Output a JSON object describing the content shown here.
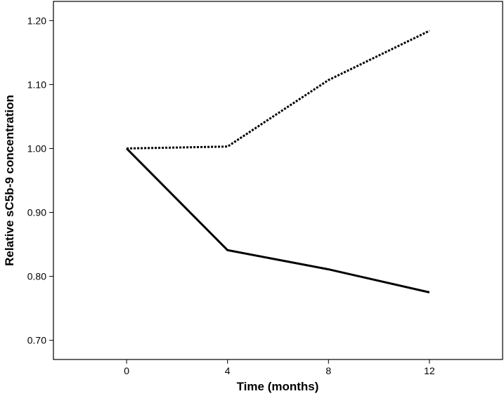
{
  "chart_data": {
    "type": "line",
    "title": "",
    "xlabel": "Time (months)",
    "ylabel": "Relative sC5b-9 concentration",
    "x": [
      0,
      4,
      8,
      12
    ],
    "xlim": [
      -2.9,
      14.9
    ],
    "ylim": [
      0.67,
      1.23
    ],
    "xticks": [
      0,
      4,
      8,
      12
    ],
    "xtick_labels": [
      "0",
      "4",
      "8",
      "12"
    ],
    "yticks": [
      0.7,
      0.8,
      0.9,
      1.0,
      1.1,
      1.2
    ],
    "ytick_labels": [
      "0.70",
      "0.80",
      "0.90",
      "1.00",
      "1.10",
      "1.20"
    ],
    "grid": false,
    "legend": "none",
    "series": [
      {
        "style": "dotted",
        "color": "#000000",
        "values": [
          1.0,
          1.003,
          1.107,
          1.184
        ]
      },
      {
        "style": "solid",
        "color": "#000000",
        "values": [
          1.0,
          0.841,
          0.811,
          0.775
        ]
      }
    ]
  }
}
